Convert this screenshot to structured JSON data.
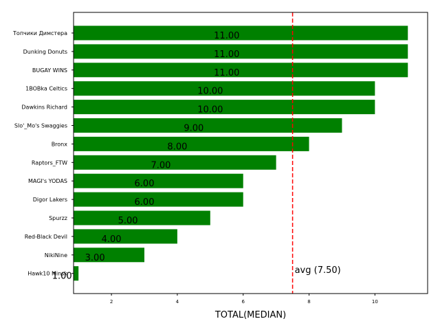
{
  "chart_data": {
    "type": "bar",
    "orientation": "horizontal",
    "categories": [
      "Топчики Димстера",
      "Dunking Donuts",
      "BUGAY WINS",
      "1BOBka Celtics",
      "Dawkins Richard",
      "Slo'_Mo's Swaggies",
      "Bronx",
      "Raptors_FTW",
      "MAGI's YODAS",
      "Digor Lakers",
      "Spurzz",
      "Red-Black Devil",
      "NikiNine",
      "Hawk10 Minsk"
    ],
    "values": [
      11,
      11,
      11,
      10,
      10,
      9,
      8,
      7,
      6,
      6,
      5,
      4,
      3,
      1
    ],
    "value_labels": [
      "11.00",
      "11.00",
      "11.00",
      "10.00",
      "10.00",
      "9.00",
      "8.00",
      "7.00",
      "6.00",
      "6.00",
      "5.00",
      "4.00",
      "3.00",
      "1.00"
    ],
    "xlabel": "TOTAL(MEDIAN)",
    "ylabel": "",
    "xlim": [
      0.85,
      11.6
    ],
    "xticks": [
      2,
      4,
      6,
      8,
      10
    ],
    "bar_color": "#008000",
    "average": {
      "value": 7.5,
      "label": "avg (7.50)",
      "color": "#ff0000",
      "style": "dashed"
    },
    "grid": false,
    "legend": false
  }
}
